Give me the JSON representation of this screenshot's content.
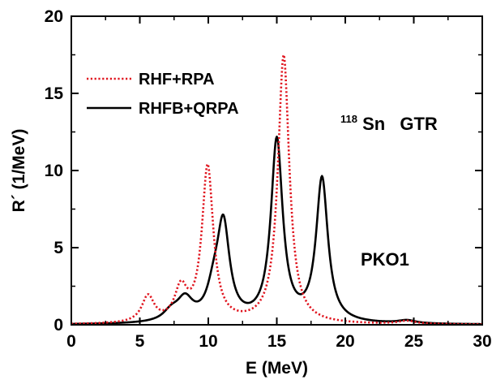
{
  "chart_data": {
    "type": "line",
    "xlabel": "E (MeV)",
    "ylabel": "R´ (1/MeV)",
    "xlim": [
      0,
      30
    ],
    "ylim": [
      0,
      20
    ],
    "x_ticks": [
      0,
      5,
      10,
      15,
      20,
      25,
      30
    ],
    "y_ticks": [
      0,
      5,
      10,
      15,
      20
    ],
    "x_tick_labels": [
      "0",
      "5",
      "10",
      "15",
      "20",
      "25",
      "30"
    ],
    "y_tick_labels": [
      "0",
      "5",
      "10",
      "15",
      "20"
    ],
    "grid": false,
    "legend_position": "top-left",
    "annotations": {
      "nucleus_mass": "118",
      "nucleus_symbol": "Sn",
      "resonance": "GTR",
      "model": "PKO1"
    },
    "series": [
      {
        "name": "RHF+RPA",
        "color": "#e0141e",
        "style": "dotted",
        "peaks": [
          {
            "E": 5.6,
            "strength": 1.7,
            "width": 0.55
          },
          {
            "E": 8.0,
            "strength": 2.1,
            "width": 0.55
          },
          {
            "E": 9.95,
            "strength": 10.1,
            "width": 0.5
          },
          {
            "E": 15.5,
            "strength": 17.4,
            "width": 0.5
          },
          {
            "E": 24.5,
            "strength": 0.2,
            "width": 0.8
          }
        ]
      },
      {
        "name": "RHFB+QRPA",
        "color": "#000000",
        "style": "solid",
        "peaks": [
          {
            "E": 7.3,
            "strength": 0.6,
            "width": 0.7
          },
          {
            "E": 8.3,
            "strength": 1.4,
            "width": 0.7
          },
          {
            "E": 10.4,
            "strength": 1.6,
            "width": 0.6
          },
          {
            "E": 11.1,
            "strength": 6.1,
            "width": 0.55
          },
          {
            "E": 15.0,
            "strength": 11.8,
            "width": 0.52
          },
          {
            "E": 18.3,
            "strength": 9.3,
            "width": 0.52
          },
          {
            "E": 24.5,
            "strength": 0.2,
            "width": 0.8
          }
        ]
      }
    ]
  }
}
